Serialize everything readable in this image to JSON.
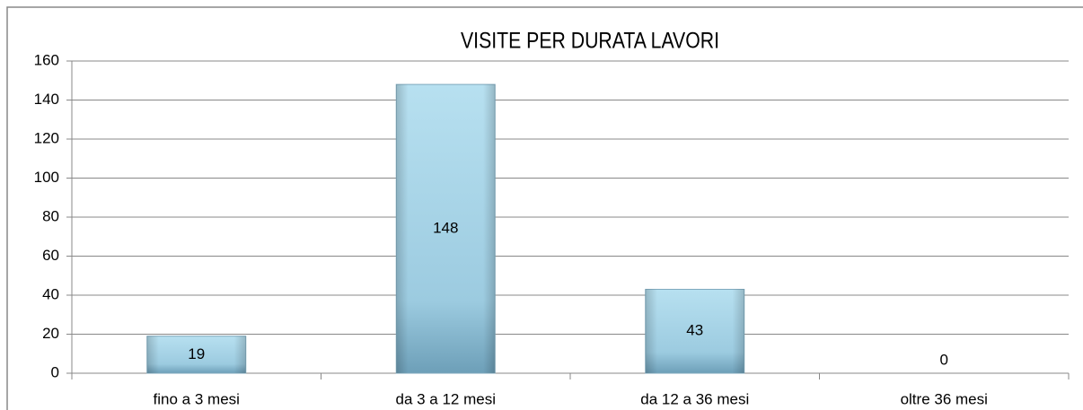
{
  "chart_data": {
    "type": "bar",
    "title": "VISITE PER DURATA LAVORI",
    "categories": [
      "fino a 3 mesi",
      "da 3 a 12 mesi",
      "da 12 a 36 mesi",
      "oltre 36 mesi"
    ],
    "values": [
      19,
      148,
      43,
      0
    ],
    "color": "#a9d3e6",
    "ylim": [
      0,
      160
    ],
    "yticks": [
      0,
      20,
      40,
      60,
      80,
      100,
      120,
      140,
      160
    ],
    "grid": true
  }
}
